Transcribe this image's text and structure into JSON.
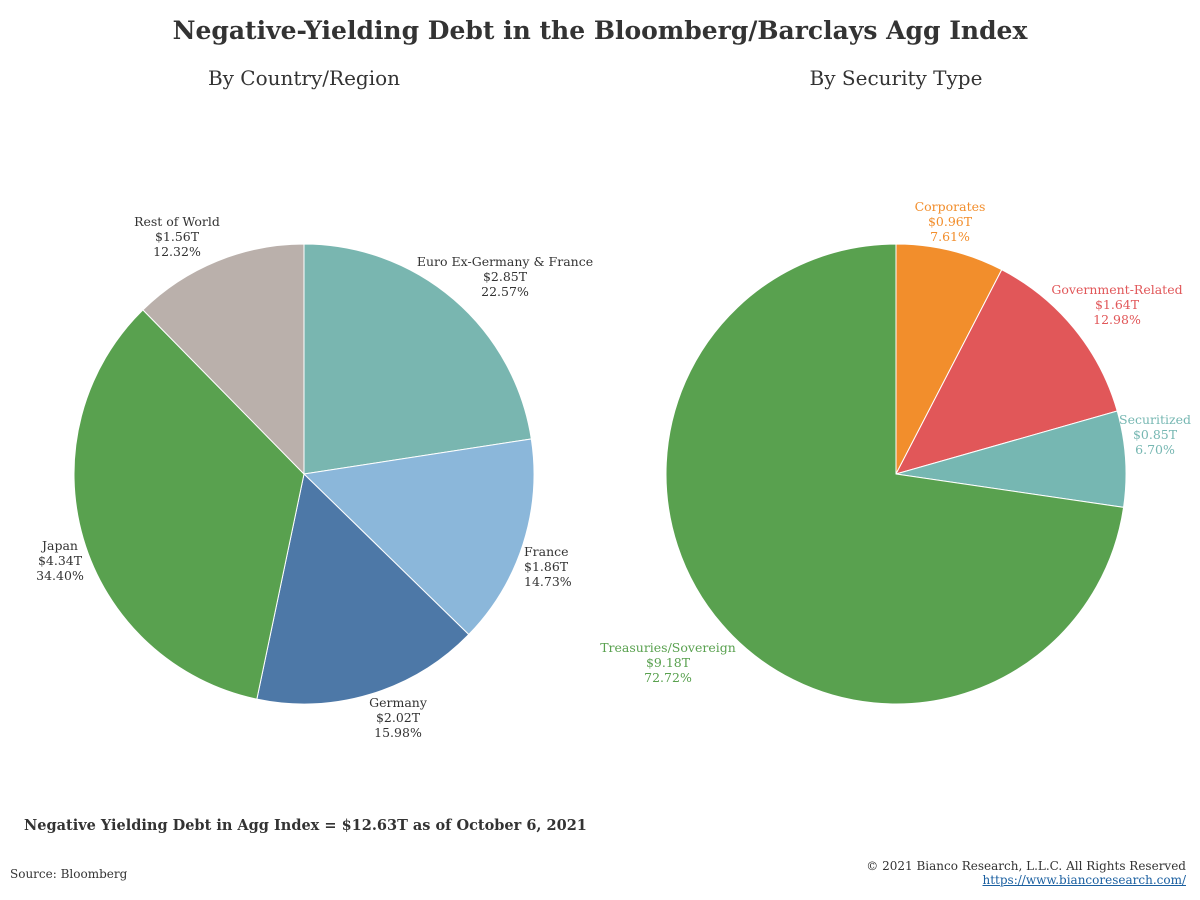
{
  "title": "Negative-Yielding Debt in the Bloomberg/Barclays Agg Index",
  "footer": {
    "total_note": "Negative Yielding Debt in Agg Index = $12.63T as of October 6, 2021",
    "source": "Source: Bloomberg",
    "copyright": "© 2021 Bianco Research, L.L.C. All Rights Reserved",
    "url": "https://www.biancoresearch.com/"
  },
  "chart_data": [
    {
      "type": "pie",
      "title": "By Country/Region",
      "start_angle_deg": 0,
      "direction": "clockwise",
      "slices": [
        {
          "label": "Euro Ex-Germany & France",
          "value": 2.85,
          "value_label": "$2.85T",
          "percent_label": "22.57%",
          "color": "#79b6b0",
          "label_color": "#333333"
        },
        {
          "label": "France",
          "value": 1.86,
          "value_label": "$1.86T",
          "percent_label": "14.73%",
          "color": "#8bb7da",
          "label_color": "#333333"
        },
        {
          "label": "Germany",
          "value": 2.02,
          "value_label": "$2.02T",
          "percent_label": "15.98%",
          "color": "#4d78a7",
          "label_color": "#333333"
        },
        {
          "label": "Japan",
          "value": 4.34,
          "value_label": "$4.34T",
          "percent_label": "34.40%",
          "color": "#59a14f",
          "label_color": "#333333"
        },
        {
          "label": "Rest of World",
          "value": 1.56,
          "value_label": "$1.56T",
          "percent_label": "12.32%",
          "color": "#bab0ab",
          "label_color": "#333333"
        }
      ]
    },
    {
      "type": "pie",
      "title": "By Security Type",
      "start_angle_deg": 0,
      "direction": "clockwise",
      "slices": [
        {
          "label": "Corporates",
          "value": 0.96,
          "value_label": "$0.96T",
          "percent_label": "7.61%",
          "color": "#f28e2c",
          "label_color": "#f28e2c"
        },
        {
          "label": "Government-Related",
          "value": 1.64,
          "value_label": "$1.64T",
          "percent_label": "12.98%",
          "color": "#e15759",
          "label_color": "#e15759"
        },
        {
          "label": "Securitized",
          "value": 0.85,
          "value_label": "$0.85T",
          "percent_label": "6.70%",
          "color": "#76b7b2",
          "label_color": "#76b7b2"
        },
        {
          "label": "Treasuries/Sovereign",
          "value": 9.18,
          "value_label": "$9.18T",
          "percent_label": "72.72%",
          "color": "#59a14f",
          "label_color": "#59a14f"
        }
      ]
    }
  ]
}
